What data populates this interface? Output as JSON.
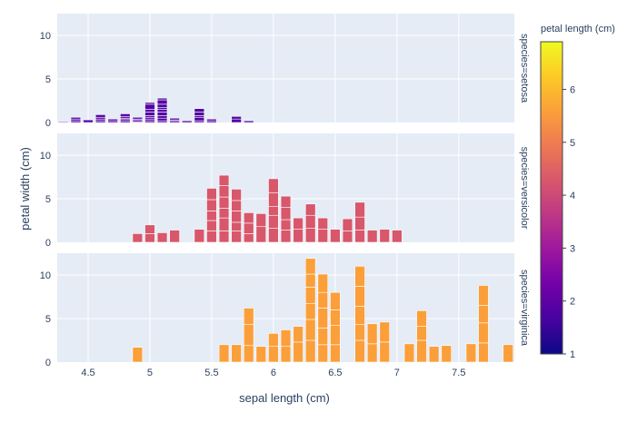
{
  "chart_data": {
    "type": "bar",
    "x_label": "sepal length (cm)",
    "y_label": "petal width (cm)",
    "x_ticks": [
      "4.5",
      "5",
      "5.5",
      "6",
      "6.5",
      "7",
      "7.5"
    ],
    "y_ticks": [
      "0",
      "5",
      "10"
    ],
    "xlim": [
      4.25,
      7.95
    ],
    "ylim": [
      0,
      12.5
    ],
    "facets": [
      {
        "label": "species=setosa",
        "stacks": [
          {
            "x": 4.3,
            "values": [
              0.1
            ]
          },
          {
            "x": 4.4,
            "values": [
              0.2,
              0.2,
              0.2
            ]
          },
          {
            "x": 4.5,
            "values": [
              0.3
            ]
          },
          {
            "x": 4.6,
            "values": [
              0.2,
              0.2,
              0.2,
              0.3
            ]
          },
          {
            "x": 4.7,
            "values": [
              0.2,
              0.2
            ]
          },
          {
            "x": 4.8,
            "values": [
              0.2,
              0.2,
              0.1,
              0.2,
              0.3
            ]
          },
          {
            "x": 4.9,
            "values": [
              0.1,
              0.2,
              0.1,
              0.2
            ]
          },
          {
            "x": 5.0,
            "values": [
              0.2,
              0.2,
              0.2,
              0.2,
              0.4,
              0.3,
              0.6,
              0.2
            ]
          },
          {
            "x": 5.1,
            "values": [
              0.2,
              0.3,
              0.3,
              0.4,
              0.3,
              0.2,
              0.4,
              0.5,
              0.2
            ]
          },
          {
            "x": 5.2,
            "values": [
              0.2,
              0.1,
              0.2
            ]
          },
          {
            "x": 5.3,
            "values": [
              0.2
            ]
          },
          {
            "x": 5.4,
            "values": [
              0.2,
              0.4,
              0.2,
              0.4,
              0.4
            ]
          },
          {
            "x": 5.5,
            "values": [
              0.2,
              0.2
            ]
          },
          {
            "x": 5.7,
            "values": [
              0.4,
              0.3
            ]
          },
          {
            "x": 5.8,
            "values": [
              0.2
            ]
          }
        ]
      },
      {
        "label": "species=versicolor",
        "stacks": [
          {
            "x": 4.9,
            "values": [
              1.0
            ]
          },
          {
            "x": 5.0,
            "values": [
              1.0,
              1.0
            ]
          },
          {
            "x": 5.1,
            "values": [
              1.1
            ]
          },
          {
            "x": 5.2,
            "values": [
              1.4
            ]
          },
          {
            "x": 5.4,
            "values": [
              1.5
            ]
          },
          {
            "x": 5.5,
            "values": [
              1.3,
              1.2,
              1.1,
              1.3,
              1.3
            ]
          },
          {
            "x": 5.6,
            "values": [
              1.3,
              1.5,
              1.1,
              1.3,
              1.3,
              1.2
            ]
          },
          {
            "x": 5.7,
            "values": [
              1.3,
              1.0,
              1.3,
              1.2,
              1.3
            ]
          },
          {
            "x": 5.8,
            "values": [
              1.0,
              1.2,
              1.2
            ]
          },
          {
            "x": 5.9,
            "values": [
              1.8,
              1.5
            ]
          },
          {
            "x": 6.0,
            "values": [
              1.6,
              1.5,
              1.0,
              1.6,
              1.6
            ]
          },
          {
            "x": 6.1,
            "values": [
              1.4,
              1.2,
              1.4,
              1.3
            ]
          },
          {
            "x": 6.2,
            "values": [
              1.5,
              1.3
            ]
          },
          {
            "x": 6.3,
            "values": [
              1.6,
              1.5,
              1.3
            ]
          },
          {
            "x": 6.4,
            "values": [
              1.5,
              1.3
            ]
          },
          {
            "x": 6.5,
            "values": [
              1.5
            ]
          },
          {
            "x": 6.6,
            "values": [
              1.3,
              1.4
            ]
          },
          {
            "x": 6.7,
            "values": [
              1.4,
              1.5,
              1.7
            ]
          },
          {
            "x": 6.8,
            "values": [
              1.4
            ]
          },
          {
            "x": 6.9,
            "values": [
              1.5
            ]
          },
          {
            "x": 7.0,
            "values": [
              1.4
            ]
          }
        ]
      },
      {
        "label": "species=virginica",
        "stacks": [
          {
            "x": 4.9,
            "values": [
              1.7
            ]
          },
          {
            "x": 5.6,
            "values": [
              2.0
            ]
          },
          {
            "x": 5.7,
            "values": [
              2.0
            ]
          },
          {
            "x": 5.8,
            "values": [
              1.9,
              2.4,
              1.9
            ]
          },
          {
            "x": 5.9,
            "values": [
              1.8
            ]
          },
          {
            "x": 6.0,
            "values": [
              1.8,
              1.5
            ]
          },
          {
            "x": 6.1,
            "values": [
              1.8,
              1.9
            ]
          },
          {
            "x": 6.2,
            "values": [
              2.3,
              1.8
            ]
          },
          {
            "x": 6.3,
            "values": [
              2.5,
              2.4,
              1.8,
              1.9,
              1.5,
              1.8
            ]
          },
          {
            "x": 6.4,
            "values": [
              2.0,
              1.9,
              2.3,
              1.8,
              2.1
            ]
          },
          {
            "x": 6.5,
            "values": [
              2.0,
              2.2,
              1.8,
              2.0
            ]
          },
          {
            "x": 6.7,
            "values": [
              2.5,
              1.8,
              2.1,
              2.3,
              2.3
            ]
          },
          {
            "x": 6.8,
            "values": [
              2.1,
              2.3
            ]
          },
          {
            "x": 6.9,
            "values": [
              2.3,
              2.3
            ]
          },
          {
            "x": 7.1,
            "values": [
              2.1
            ]
          },
          {
            "x": 7.2,
            "values": [
              2.5,
              1.6,
              1.8
            ]
          },
          {
            "x": 7.3,
            "values": [
              1.8
            ]
          },
          {
            "x": 7.4,
            "values": [
              1.9
            ]
          },
          {
            "x": 7.6,
            "values": [
              2.1
            ]
          },
          {
            "x": 7.7,
            "values": [
              2.2,
              2.3,
              2.0,
              2.3
            ]
          },
          {
            "x": 7.9,
            "values": [
              2.0
            ]
          }
        ]
      }
    ],
    "colorbar": {
      "title": "petal length (cm)",
      "min": 1,
      "max": 6.9,
      "ticks": [
        "1",
        "2",
        "3",
        "4",
        "5",
        "6"
      ],
      "colorscale": [
        "#0d0887",
        "#46039f",
        "#7201a8",
        "#9c179e",
        "#bd3786",
        "#d8576b",
        "#ed7953",
        "#fb9f3a",
        "#fdca26",
        "#f0f921"
      ]
    },
    "facet_bar_colors": [
      "#5302a3",
      "#d8576b",
      "#fb9f3a"
    ]
  }
}
